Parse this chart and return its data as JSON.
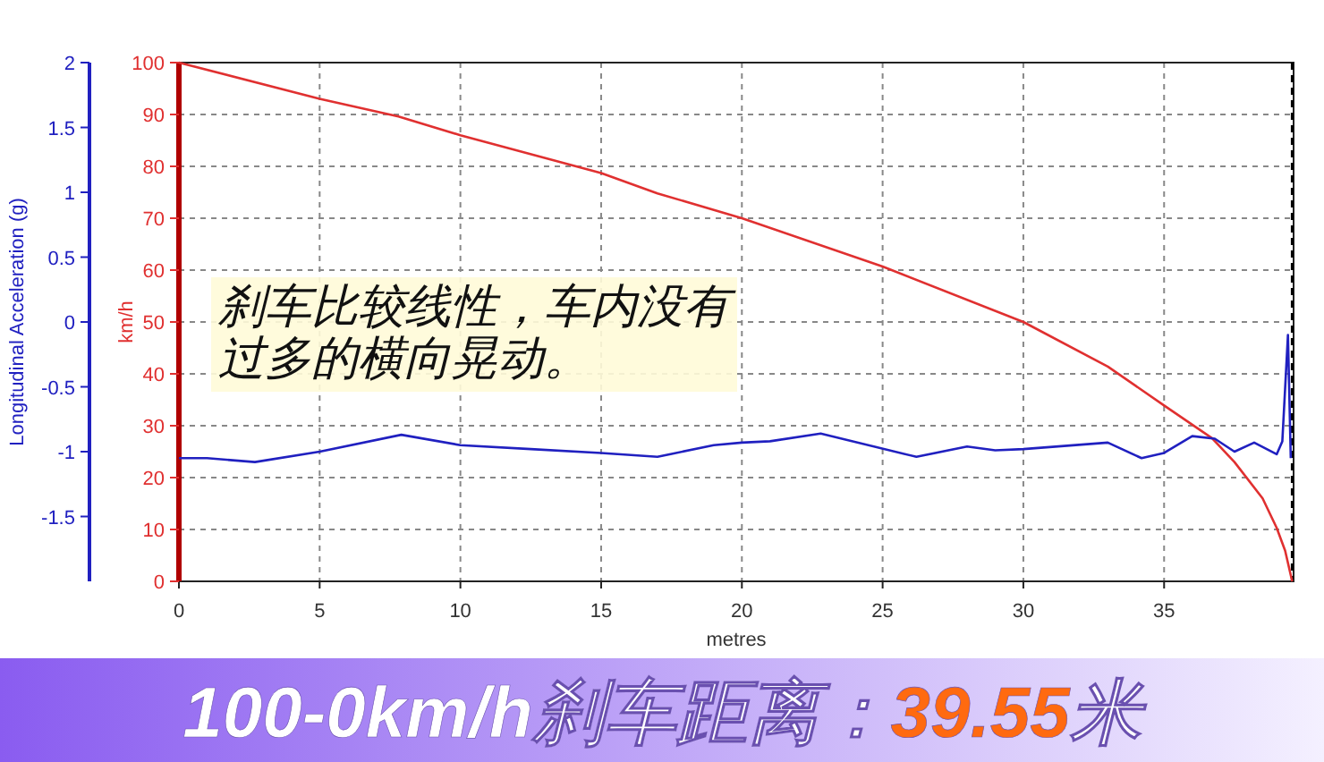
{
  "chart_data": {
    "type": "line",
    "title": "100-0km/h刹车距离：39.55米",
    "xlabel": "metres",
    "ylabel": "km/h",
    "y2label": "Longitudinal Acceleration (g)",
    "annotations": [
      "刹车比较线性，车内没有过多的横向晃动。"
    ],
    "xlim": [
      0,
      39.6
    ],
    "xticks": [
      0,
      5,
      10,
      15,
      20,
      25,
      30,
      35
    ],
    "ylim": [
      0,
      100
    ],
    "yticks": [
      0,
      10,
      20,
      30,
      40,
      50,
      60,
      70,
      80,
      90,
      100
    ],
    "y2lim": [
      -2,
      2
    ],
    "y2ticks": [
      -1.5,
      -1,
      -0.5,
      0,
      0.5,
      1,
      1.5,
      2
    ],
    "grid": true,
    "marker": "none",
    "line_style": "solid",
    "ref_lines": [
      {
        "axis": "x",
        "value": 39.55,
        "color": "#000000",
        "line_style": "dashed"
      }
    ],
    "series": [
      {
        "color": "#e03030",
        "x": [
          0,
          5,
          7.8,
          10,
          15,
          17,
          20,
          25,
          30,
          33,
          35,
          36.7,
          37.5,
          38.5,
          39,
          39.3,
          39.55
        ],
        "values": [
          100,
          93,
          89.6,
          86,
          78.7,
          74.8,
          70,
          60.7,
          50,
          41.4,
          33.9,
          27.6,
          23,
          16,
          10.3,
          5.9,
          0
        ]
      },
      {
        "color": "#2020c0",
        "axis": "y2",
        "x": [
          0,
          1,
          2.7,
          5,
          7.9,
          10,
          12.5,
          15,
          17,
          19,
          20,
          21,
          22.8,
          26.2,
          28,
          29,
          30,
          33,
          34.2,
          35,
          36,
          36.8,
          37.5,
          38.2,
          39,
          39.2,
          39.4,
          39.5
        ],
        "values": [
          -1.05,
          -1.05,
          -1.08,
          -1,
          -0.87,
          -0.95,
          -0.98,
          -1.01,
          -1.04,
          -0.95,
          -0.93,
          -0.92,
          -0.86,
          -1.04,
          -0.96,
          -0.99,
          -0.98,
          -0.93,
          -1.05,
          -1.01,
          -0.88,
          -0.9,
          -1,
          -0.93,
          -1.02,
          -0.92,
          -0.1,
          -1.05
        ]
      }
    ]
  }
}
